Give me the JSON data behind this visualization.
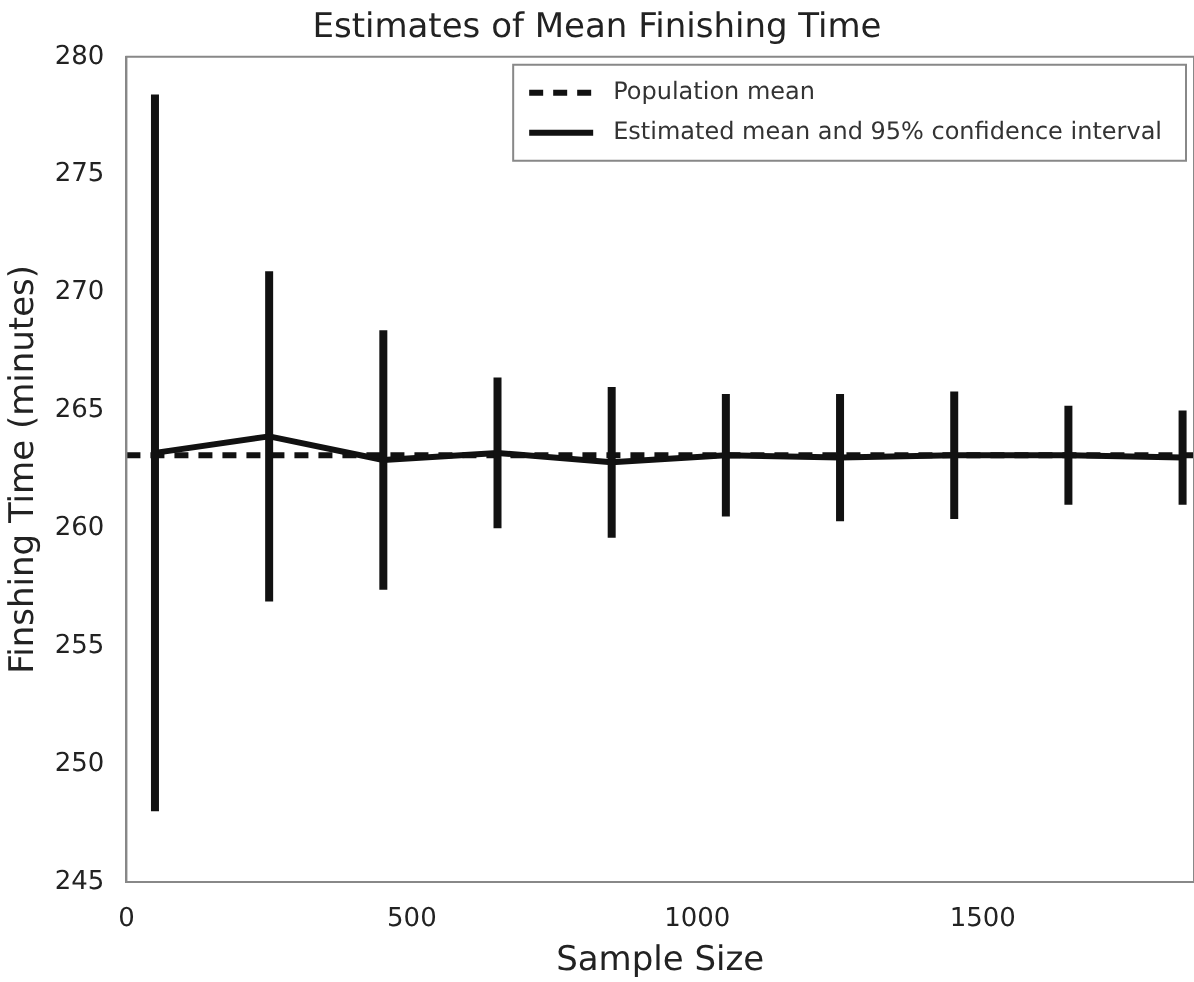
{
  "chart_data": {
    "type": "line",
    "title": "Estimates of Mean Finishing Time",
    "xlabel": "Sample Size",
    "ylabel": "Finshing Time (minutes)",
    "x": [
      50,
      250,
      450,
      650,
      850,
      1050,
      1250,
      1450,
      1650,
      1850
    ],
    "series": [
      {
        "name": "Estimated mean and 95% confidence interval",
        "color": "#111111",
        "values": [
          263.2,
          263.9,
          262.9,
          263.2,
          262.8,
          263.1,
          263.0,
          263.1,
          263.1,
          263.0
        ],
        "errors": [
          15.2,
          7.0,
          5.5,
          3.2,
          3.2,
          2.6,
          2.7,
          2.7,
          2.1,
          2.0
        ]
      }
    ],
    "ref_lines": [
      {
        "axis": "y",
        "value": 263.1,
        "label": "Population mean",
        "color": "#111111",
        "line_style": "dashed"
      }
    ],
    "xlim": [
      0,
      1870
    ],
    "xticks": [
      0,
      500,
      1000,
      1500
    ],
    "ylim": [
      245,
      280
    ],
    "yticks": [
      245,
      250,
      255,
      260,
      265,
      270,
      275,
      280
    ],
    "grid": false,
    "legend": "top right",
    "marker": "none",
    "line_style": "solid"
  }
}
